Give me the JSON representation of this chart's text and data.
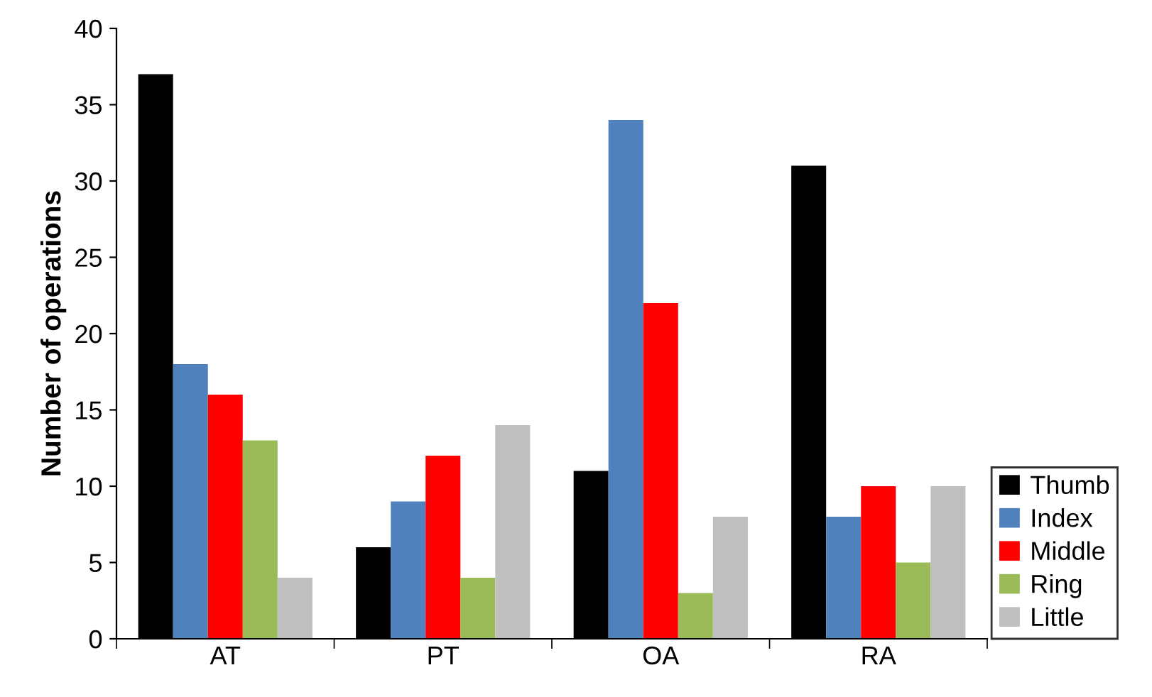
{
  "chart_data": {
    "type": "bar",
    "ylabel": "Number of operations",
    "categories": [
      "AT",
      "PT",
      "OA",
      "RA"
    ],
    "series": [
      {
        "name": "Thumb",
        "color": "#000000",
        "values": [
          37,
          6,
          11,
          31
        ]
      },
      {
        "name": "Index",
        "color": "#4f81bd",
        "values": [
          18,
          9,
          34,
          8
        ]
      },
      {
        "name": "Middle",
        "color": "#ff0000",
        "values": [
          16,
          12,
          22,
          10
        ]
      },
      {
        "name": "Ring",
        "color": "#9bbb59",
        "values": [
          13,
          4,
          3,
          5
        ]
      },
      {
        "name": "Little",
        "color": "#bfbfbf",
        "values": [
          4,
          14,
          8,
          10
        ]
      }
    ],
    "ylim": [
      0,
      40
    ],
    "yticks": [
      0,
      5,
      10,
      15,
      20,
      25,
      30,
      35,
      40
    ],
    "grid": false,
    "legend": "bottom right"
  }
}
